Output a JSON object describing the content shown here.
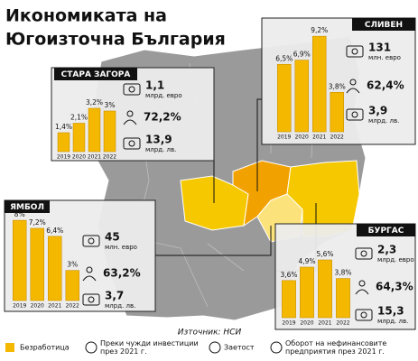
{
  "title": [
    "Икономиката на",
    "Югоизточна България"
  ],
  "source": "Източник: НСИ",
  "legend": [
    [
      "Безработица"
    ],
    [
      "Преки чужди инвестиции",
      "през 2021 г."
    ],
    [
      "Заетост"
    ],
    [
      "Оборот на нефинансовите",
      "предприятия през 2021 г."
    ]
  ],
  "chart_data": [
    {
      "type": "bar",
      "title": "СТАРА ЗАГОРА",
      "categories": [
        "2019",
        "2020",
        "2021",
        "2022"
      ],
      "values": [
        1.4,
        2.1,
        3.2,
        3
      ],
      "value_labels": [
        "1,4%",
        "2,1%",
        "3,2%",
        "3%"
      ],
      "color": "#f5b800",
      "ylim": [
        0,
        4
      ],
      "stats": [
        {
          "value": "1,1",
          "unit": "млрд. евро"
        },
        {
          "value": "72,2%"
        },
        {
          "value": "13,9",
          "unit": "млрд. лв."
        }
      ]
    },
    {
      "type": "bar",
      "title": "СЛИВЕН",
      "categories": [
        "2019",
        "2020",
        "2021",
        "2022"
      ],
      "values": [
        6.5,
        6.9,
        9.2,
        3.8
      ],
      "value_labels": [
        "6,5%",
        "6,9%",
        "9,2%",
        "3,8%"
      ],
      "color": "#f5b800",
      "ylim": [
        0,
        10
      ],
      "stats": [
        {
          "value": "131",
          "unit": "млн. евро"
        },
        {
          "value": "62,4%"
        },
        {
          "value": "3,9",
          "unit": "млрд. лв."
        }
      ]
    },
    {
      "type": "bar",
      "title": "ЯМБОЛ",
      "categories": [
        "2019",
        "2020",
        "2021",
        "2022"
      ],
      "values": [
        8,
        7.2,
        6.4,
        3
      ],
      "value_labels": [
        "8%",
        "7,2%",
        "6,4%",
        "3%"
      ],
      "color": "#f5b800",
      "ylim": [
        0,
        9
      ],
      "stats": [
        {
          "value": "45",
          "unit": "млн. евро"
        },
        {
          "value": "63,2%"
        },
        {
          "value": "3,7",
          "unit": "млрд. лв."
        }
      ]
    },
    {
      "type": "bar",
      "title": "БУРГАС",
      "categories": [
        "2019",
        "2020",
        "2021",
        "2022"
      ],
      "values": [
        3.6,
        4.9,
        5.6,
        3.8
      ],
      "value_labels": [
        "3,6%",
        "4,9%",
        "5,6%",
        "3,8%"
      ],
      "color": "#f5b800",
      "ylim": [
        0,
        7
      ],
      "stats": [
        {
          "value": "2,3",
          "unit": "млрд. евро"
        },
        {
          "value": "64,3%"
        },
        {
          "value": "15,3",
          "unit": "млрд. лв."
        }
      ]
    }
  ]
}
